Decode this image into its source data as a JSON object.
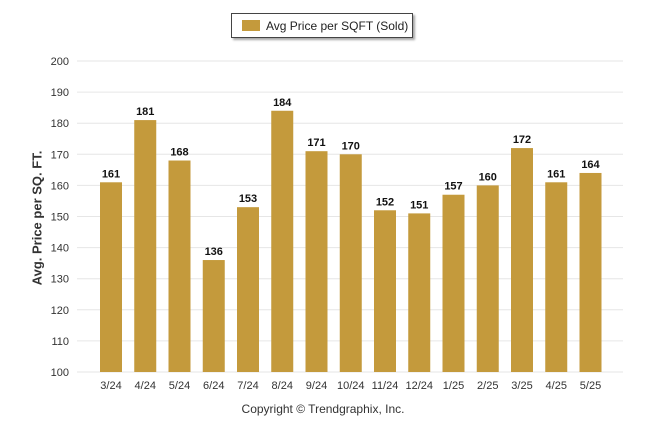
{
  "legend": {
    "label": "Avg Price per SQFT (Sold)"
  },
  "footer": {
    "copyright": "Copyright © Trendgraphix, Inc."
  },
  "colors": {
    "bar": "#c49a3c",
    "grid": "#e6e6e6",
    "axis_text": "#333333"
  },
  "chart_data": {
    "type": "bar",
    "categories": [
      "3/24",
      "4/24",
      "5/24",
      "6/24",
      "7/24",
      "8/24",
      "9/24",
      "10/24",
      "11/24",
      "12/24",
      "1/25",
      "2/25",
      "3/25",
      "4/25",
      "5/25"
    ],
    "series": [
      {
        "name": "Avg Price per SQFT (Sold)",
        "values": [
          161,
          181,
          168,
          136,
          153,
          184,
          171,
          170,
          152,
          151,
          157,
          160,
          172,
          161,
          164
        ]
      }
    ],
    "ylabel": "Avg. Price per SQ. FT.",
    "xlabel": "",
    "ylim": [
      100,
      200
    ],
    "yticks": [
      100,
      110,
      120,
      130,
      140,
      150,
      160,
      170,
      180,
      190,
      200
    ],
    "grid": true,
    "legend_position": "top-center"
  }
}
